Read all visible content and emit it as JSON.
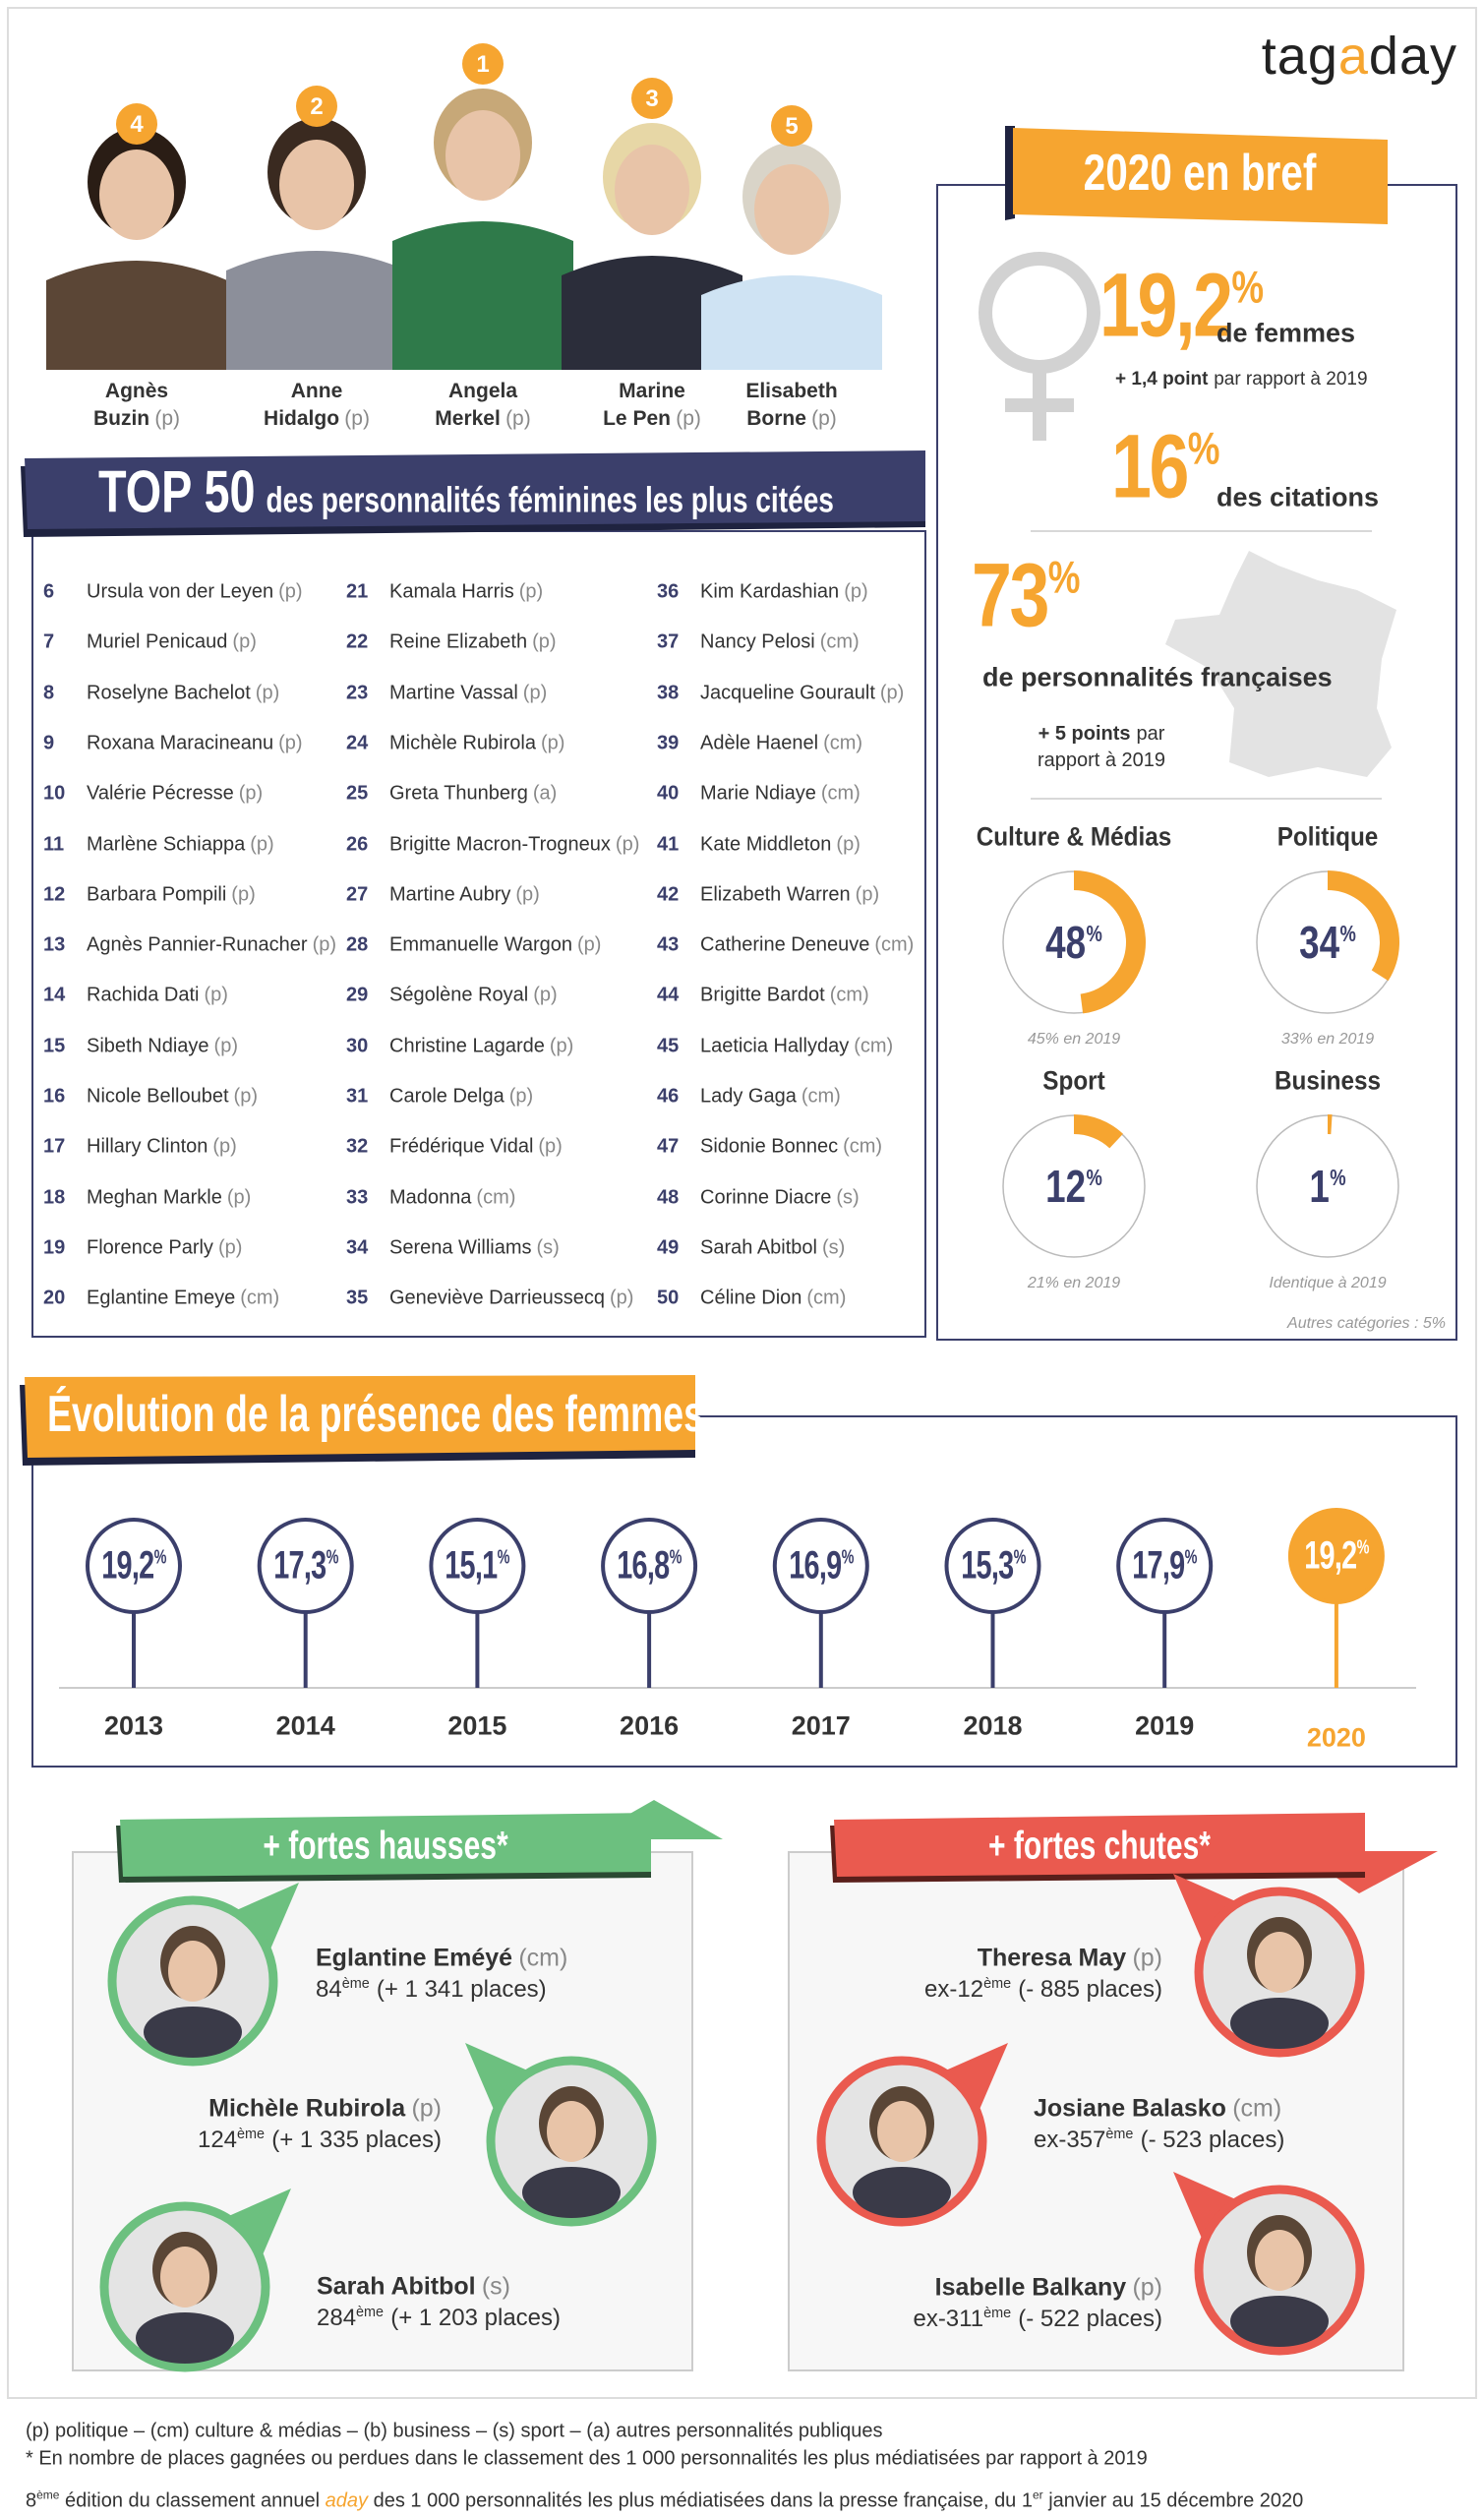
{
  "header": {
    "logo": "tagaday"
  },
  "top5": [
    {
      "rank": 4,
      "first": "Agnès",
      "last": "Buzin",
      "tag": "(p)"
    },
    {
      "rank": 2,
      "first": "Anne",
      "last": "Hidalgo",
      "tag": "(p)"
    },
    {
      "rank": 1,
      "first": "Angela",
      "last": "Merkel",
      "tag": "(p)"
    },
    {
      "rank": 3,
      "first": "Marine",
      "last": "Le Pen",
      "tag": "(p)"
    },
    {
      "rank": 5,
      "first": "Elisabeth",
      "last": "Borne",
      "tag": "(p)"
    }
  ],
  "top50": {
    "title_big": "TOP 50",
    "title_rest": "des personnalités féminines les plus citées",
    "entries": [
      [
        6,
        "Ursula von der Leyen",
        "(p)"
      ],
      [
        7,
        "Muriel Penicaud",
        "(p)"
      ],
      [
        8,
        "Roselyne Bachelot",
        "(p)"
      ],
      [
        9,
        "Roxana Maracineanu",
        "(p)"
      ],
      [
        10,
        "Valérie Pécresse",
        "(p)"
      ],
      [
        11,
        "Marlène Schiappa",
        "(p)"
      ],
      [
        12,
        "Barbara Pompili",
        "(p)"
      ],
      [
        13,
        "Agnès Pannier-Runacher",
        "(p)"
      ],
      [
        14,
        "Rachida Dati",
        "(p)"
      ],
      [
        15,
        "Sibeth Ndiaye",
        "(p)"
      ],
      [
        16,
        "Nicole Belloubet",
        "(p)"
      ],
      [
        17,
        "Hillary Clinton",
        "(p)"
      ],
      [
        18,
        "Meghan Markle",
        "(p)"
      ],
      [
        19,
        "Florence Parly",
        "(p)"
      ],
      [
        20,
        "Eglantine Emeye",
        "(cm)"
      ],
      [
        21,
        "Kamala Harris",
        "(p)"
      ],
      [
        22,
        "Reine Elizabeth",
        "(p)"
      ],
      [
        23,
        "Martine Vassal",
        "(p)"
      ],
      [
        24,
        "Michèle Rubirola",
        "(p)"
      ],
      [
        25,
        "Greta Thunberg",
        "(a)"
      ],
      [
        26,
        "Brigitte Macron-Trogneux",
        "(p)"
      ],
      [
        27,
        "Martine Aubry",
        "(p)"
      ],
      [
        28,
        "Emmanuelle Wargon",
        "(p)"
      ],
      [
        29,
        "Ségolène Royal",
        "(p)"
      ],
      [
        30,
        "Christine Lagarde",
        "(p)"
      ],
      [
        31,
        "Carole Delga",
        "(p)"
      ],
      [
        32,
        "Frédérique Vidal",
        "(p)"
      ],
      [
        33,
        "Madonna",
        "(cm)"
      ],
      [
        34,
        "Serena Williams",
        "(s)"
      ],
      [
        35,
        "Geneviève Darrieussecq",
        "(p)"
      ],
      [
        36,
        "Kim Kardashian",
        "(p)"
      ],
      [
        37,
        "Nancy Pelosi",
        "(cm)"
      ],
      [
        38,
        "Jacqueline Gourault",
        "(p)"
      ],
      [
        39,
        "Adèle Haenel",
        "(cm)"
      ],
      [
        40,
        "Marie Ndiaye",
        "(cm)"
      ],
      [
        41,
        "Kate Middleton",
        "(p)"
      ],
      [
        42,
        "Elizabeth Warren",
        "(p)"
      ],
      [
        43,
        "Catherine Deneuve",
        "(cm)"
      ],
      [
        44,
        "Brigitte Bardot",
        "(cm)"
      ],
      [
        45,
        "Laeticia Hallyday",
        "(cm)"
      ],
      [
        46,
        "Lady Gaga",
        "(cm)"
      ],
      [
        47,
        "Sidonie Bonnec",
        "(cm)"
      ],
      [
        48,
        "Corinne Diacre",
        "(s)"
      ],
      [
        49,
        "Sarah Abitbol",
        "(s)"
      ],
      [
        50,
        "Céline Dion",
        "(cm)"
      ]
    ]
  },
  "bref": {
    "title": "2020 en bref",
    "women": {
      "value": "19,2%",
      "label": "de femmes",
      "change_bold": "+ 1,4 point",
      "change_rest": "par rapport à 2019"
    },
    "citations": {
      "value": "16%",
      "label": "des citations"
    },
    "french": {
      "value": "73%",
      "label": "de personnalités françaises",
      "change_bold": "+ 5 points",
      "change_rest": "par rapport à 2019"
    },
    "categories": [
      {
        "name": "Culture & Médias",
        "value": 48,
        "label": "48%",
        "previous": "45% en 2019"
      },
      {
        "name": "Politique",
        "value": 34,
        "label": "34%",
        "previous": "33% en 2019"
      },
      {
        "name": "Sport",
        "value": 12,
        "label": "12%",
        "previous": "21% en 2019"
      },
      {
        "name": "Business",
        "value": 1,
        "label": "1%",
        "previous": "Identique à 2019"
      }
    ],
    "other": "Autres catégories : 5%"
  },
  "evolution": {
    "title": "Évolution de la présence des femmes",
    "points": [
      {
        "year": "2013",
        "value": "19,2%"
      },
      {
        "year": "2014",
        "value": "17,3%"
      },
      {
        "year": "2015",
        "value": "15,1%"
      },
      {
        "year": "2016",
        "value": "16,8%"
      },
      {
        "year": "2017",
        "value": "16,9%"
      },
      {
        "year": "2018",
        "value": "15,3%"
      },
      {
        "year": "2019",
        "value": "17,9%"
      },
      {
        "year": "2020",
        "value": "19,2%"
      }
    ]
  },
  "rises": {
    "title": "+ fortes hausses*",
    "people": [
      {
        "name": "Eglantine Eméyé",
        "tag": "(cm)",
        "rank": "84",
        "rank_sup": "ème",
        "change": "(+ 1 341 places)"
      },
      {
        "name": "Michèle Rubirola",
        "tag": "(p)",
        "rank": "124",
        "rank_sup": "ème",
        "change": "(+ 1 335 places)"
      },
      {
        "name": "Sarah Abitbol",
        "tag": "(s)",
        "rank": "284",
        "rank_sup": "ème",
        "change": "(+ 1 203 places)"
      }
    ]
  },
  "falls": {
    "title": "+ fortes chutes*",
    "people": [
      {
        "name": "Theresa May",
        "tag": "(p)",
        "rank": "ex-12",
        "rank_sup": "ème",
        "change": "(- 885 places)"
      },
      {
        "name": "Josiane Balasko",
        "tag": "(cm)",
        "rank": "ex-357",
        "rank_sup": "ème",
        "change": "(- 523 places)"
      },
      {
        "name": "Isabelle Balkany",
        "tag": "(p)",
        "rank": "ex-311",
        "rank_sup": "ème",
        "change": "(- 522 places)"
      }
    ]
  },
  "footer": {
    "legend": "(p) politique – (cm) culture & médias – (b) business – (s) sport – (a) autres personnalités publiques",
    "note": "* En nombre de places gagnées ou perdues dans le classement des 1 000 personnalités les plus médiatisées par rapport à 2019",
    "edition": "8",
    "edition_sup": "ème",
    "text1": " édition du classement annuel ",
    "brand": "aday",
    "text2": " des 1 000 personnalités les plus médiatisées dans la presse française, du 1",
    "day_sup": "er",
    "text3": " janvier au 15 décembre 2020"
  }
}
